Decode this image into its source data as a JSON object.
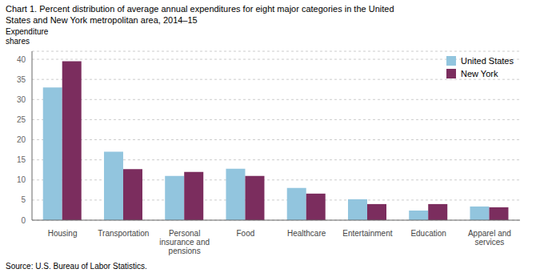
{
  "chart_data": {
    "type": "bar",
    "title": "Chart 1. Percent distribution of average annual expenditures for eight major categories in the United\nStates and New York metropolitan area, 2014–15",
    "y_label": "Expenditure\nshares",
    "source": "Source: U.S. Bureau of Labor Statistics.",
    "categories": [
      "Housing",
      "Transportation",
      "Personal\ninsurance and\npensions",
      "Food",
      "Healthcare",
      "Entertainment",
      "Education",
      "Apparel and\nservices"
    ],
    "series": [
      {
        "name": "United States",
        "color": "#92C5DE",
        "values": [
          33.0,
          17.0,
          11.0,
          12.8,
          8.0,
          5.2,
          2.4,
          3.4
        ]
      },
      {
        "name": "New York",
        "color": "#7B2D5E",
        "values": [
          39.5,
          12.7,
          12.0,
          11.0,
          6.6,
          4.0,
          4.0,
          3.2
        ]
      }
    ],
    "ylim": [
      0,
      42
    ],
    "yticks": [
      0,
      5,
      10,
      15,
      20,
      25,
      30,
      35,
      40
    ],
    "grid": true,
    "legend": "upper right"
  }
}
